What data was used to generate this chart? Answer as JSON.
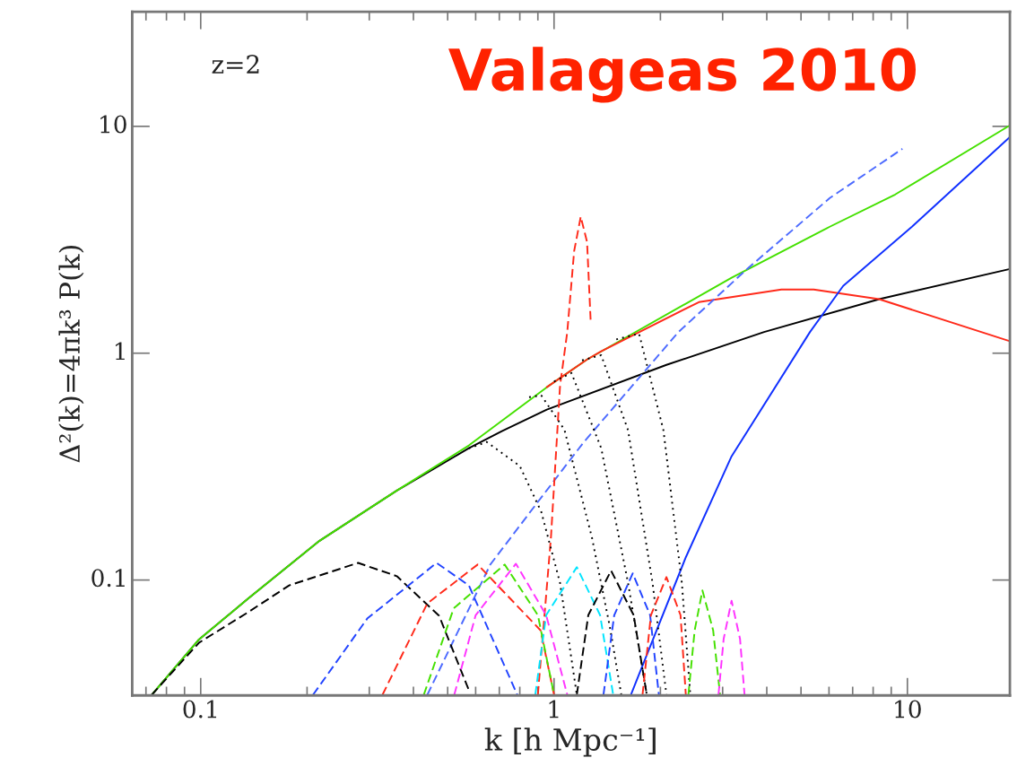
{
  "chart_data": {
    "type": "line",
    "xlabel": "k [h Mpc⁻¹]",
    "ylabel": "Δ²(k)=4πk³ P(k)",
    "annotations": [
      "z=2",
      "Valageas 2010"
    ],
    "log": "xy",
    "xlim": [
      0.064,
      19.5
    ],
    "ylim": [
      0.031,
      32
    ],
    "xticks": [
      0.1,
      1,
      10
    ],
    "yticks": [
      0.1,
      1,
      10
    ],
    "grid": false,
    "legend": false,
    "series": [
      {
        "color": "#000000",
        "line_style": "solid",
        "x": [
          0.0727,
          0.099,
          0.136,
          0.217,
          0.359,
          0.574,
          0.712,
          0.954,
          2.08,
          3.93,
          8.32,
          19.5
        ],
        "values": [
          0.0312,
          0.0548,
          0.0826,
          0.149,
          0.248,
          0.381,
          0.453,
          0.564,
          0.888,
          1.24,
          1.73,
          2.35
        ]
      },
      {
        "color": "#44e000",
        "line_style": "solid",
        "x": [
          0.0727,
          0.099,
          0.136,
          0.217,
          0.359,
          0.574,
          0.954,
          1.24,
          3.18,
          6.03,
          9.24,
          19.5
        ],
        "values": [
          0.0312,
          0.0548,
          0.0826,
          0.149,
          0.248,
          0.392,
          0.708,
          0.938,
          2.15,
          3.61,
          5.01,
          10.1
        ]
      },
      {
        "color": "#ff2a1a",
        "line_style": "solid",
        "x": [
          0.954,
          1.24,
          1.36,
          2.57,
          4.4,
          5.43,
          8.32,
          19.5
        ],
        "values": [
          0.708,
          0.938,
          1.02,
          1.68,
          1.91,
          1.91,
          1.73,
          1.13
        ]
      },
      {
        "color": "#1030ff",
        "line_style": "solid",
        "x": [
          1.65,
          2.36,
          3.18,
          5.3,
          6.58,
          10.3,
          19.5
        ],
        "values": [
          0.0312,
          0.126,
          0.351,
          1.24,
          1.98,
          3.61,
          8.97
        ]
      },
      {
        "color": "#4d6bff",
        "line_style": "dashed",
        "x": [
          0.438,
          0.66,
          0.9,
          1.21,
          2.25,
          3.54,
          6.03,
          9.68
        ],
        "values": [
          0.0312,
          0.117,
          0.221,
          0.403,
          1.24,
          2.37,
          4.83,
          7.96
        ]
      },
      {
        "color": "#ff2a1a",
        "line_style": "dashed",
        "x": [
          0.9,
          0.98,
          1.04,
          1.09,
          1.14,
          1.19,
          1.24,
          1.27
        ],
        "values": [
          0.0312,
          0.154,
          0.72,
          1.24,
          2.82,
          4.0,
          3.09,
          1.37
        ]
      },
      {
        "color": "#000000",
        "line_style": "dotted",
        "x": [
          0.574,
          0.645,
          0.8,
          0.92,
          1.04,
          1.16
        ],
        "values": [
          0.381,
          0.406,
          0.318,
          0.2,
          0.097,
          0.0312
        ]
      },
      {
        "color": "#000000",
        "line_style": "dotted",
        "x": [
          0.85,
          0.92,
          1.07,
          1.28,
          1.44,
          1.55
        ],
        "values": [
          0.64,
          0.652,
          0.46,
          0.154,
          0.0617,
          0.0312
        ]
      },
      {
        "color": "#000000",
        "line_style": "dotted",
        "x": [
          1.0,
          1.12,
          1.36,
          1.62,
          1.83
        ],
        "values": [
          0.75,
          0.818,
          0.381,
          0.097,
          0.0312
        ]
      },
      {
        "color": "#000000",
        "line_style": "dotted",
        "x": [
          1.2,
          1.36,
          1.62,
          1.9,
          2.08
        ],
        "values": [
          0.93,
          0.98,
          0.457,
          0.097,
          0.0312
        ]
      },
      {
        "color": "#000000",
        "line_style": "dotted",
        "x": [
          1.5,
          1.74,
          2.04,
          2.3,
          2.43
        ],
        "values": [
          1.15,
          1.22,
          0.457,
          0.097,
          0.0312
        ]
      },
      {
        "color": "#000000",
        "line_style": "dashed",
        "x": [
          0.0727,
          0.099,
          0.136,
          0.178,
          0.279,
          0.359,
          0.473,
          0.574
        ],
        "values": [
          0.0312,
          0.053,
          0.072,
          0.0947,
          0.119,
          0.104,
          0.0695,
          0.0327
        ]
      },
      {
        "color": "#2244ff",
        "line_style": "dashed",
        "x": [
          0.208,
          0.296,
          0.465,
          0.574,
          0.787
        ],
        "values": [
          0.0312,
          0.0676,
          0.119,
          0.0947,
          0.0312
        ]
      },
      {
        "color": "#ff2a1a",
        "line_style": "dashed",
        "x": [
          0.327,
          0.438,
          0.608,
          0.916,
          1.0
        ],
        "values": [
          0.0312,
          0.0789,
          0.117,
          0.06,
          0.0312
        ]
      },
      {
        "color": "#44e000",
        "line_style": "dashed",
        "x": [
          0.428,
          0.52,
          0.725,
          0.9,
          1.0
        ],
        "values": [
          0.0312,
          0.075,
          0.117,
          0.07,
          0.0312
        ]
      },
      {
        "color": "#ff33ff",
        "line_style": "dashed",
        "x": [
          0.522,
          0.6,
          0.78,
          0.95,
          1.09
        ],
        "values": [
          0.0312,
          0.07,
          0.118,
          0.07,
          0.0312
        ]
      },
      {
        "color": "#00e5ff",
        "line_style": "dashed",
        "x": [
          0.885,
          0.95,
          1.16,
          1.35,
          1.47
        ],
        "values": [
          0.0312,
          0.07,
          0.114,
          0.07,
          0.0312
        ]
      },
      {
        "color": "#000000",
        "line_style": "dashed",
        "x": [
          1.16,
          1.25,
          1.45,
          1.68,
          1.83
        ],
        "values": [
          0.0312,
          0.07,
          0.11,
          0.07,
          0.0312
        ]
      },
      {
        "color": "#2244ff",
        "line_style": "dashed",
        "x": [
          1.38,
          1.48,
          1.67,
          1.87,
          1.98
        ],
        "values": [
          0.0312,
          0.07,
          0.107,
          0.07,
          0.0312
        ]
      },
      {
        "color": "#ff2a1a",
        "line_style": "dashed",
        "x": [
          1.78,
          1.88,
          2.08,
          2.28,
          2.36
        ],
        "values": [
          0.0312,
          0.07,
          0.103,
          0.07,
          0.0312
        ]
      },
      {
        "color": "#44e000",
        "line_style": "dashed",
        "x": [
          2.4,
          2.5,
          2.63,
          2.82,
          2.95
        ],
        "values": [
          0.0312,
          0.06,
          0.09,
          0.06,
          0.0312
        ]
      },
      {
        "color": "#ff33ff",
        "line_style": "dashed",
        "x": [
          2.92,
          3.02,
          3.18,
          3.36,
          3.46
        ],
        "values": [
          0.0312,
          0.055,
          0.081,
          0.055,
          0.0312
        ]
      }
    ]
  }
}
